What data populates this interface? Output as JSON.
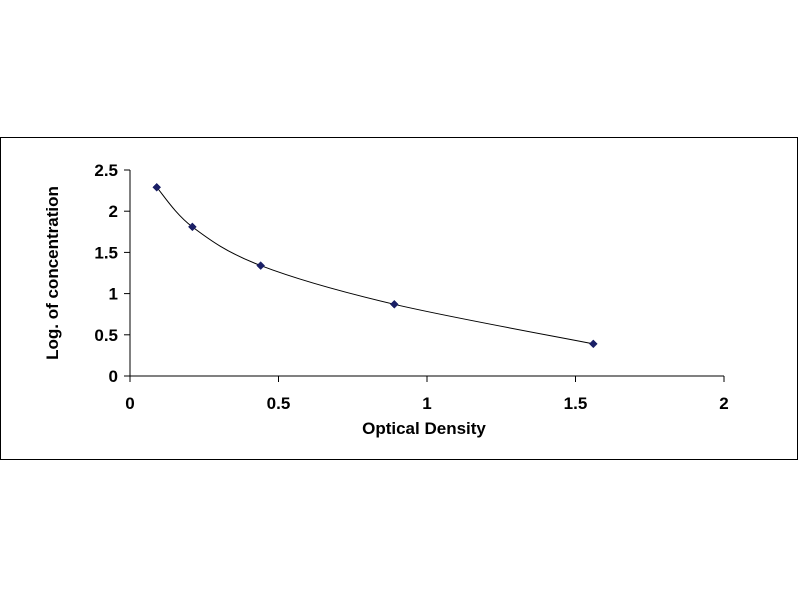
{
  "chart_data": {
    "type": "scatter",
    "title": "",
    "xlabel": "Optical Density",
    "ylabel": "Log. of concentration",
    "xlim": [
      0,
      2
    ],
    "ylim": [
      0,
      2.5
    ],
    "x_ticks": [
      "0",
      "0.5",
      "1",
      "1.5",
      "2"
    ],
    "y_ticks": [
      "0",
      "0.5",
      "1",
      "1.5",
      "2",
      "2.5"
    ],
    "x": [
      0.09,
      0.21,
      0.44,
      0.89,
      1.56
    ],
    "y": [
      2.29,
      1.81,
      1.34,
      0.87,
      0.39
    ],
    "trendline": "smooth curve through points",
    "grid": false,
    "legend": "none",
    "colors": {
      "marker": "#1a1f66",
      "line": "#000000",
      "axis": "#000000"
    }
  }
}
